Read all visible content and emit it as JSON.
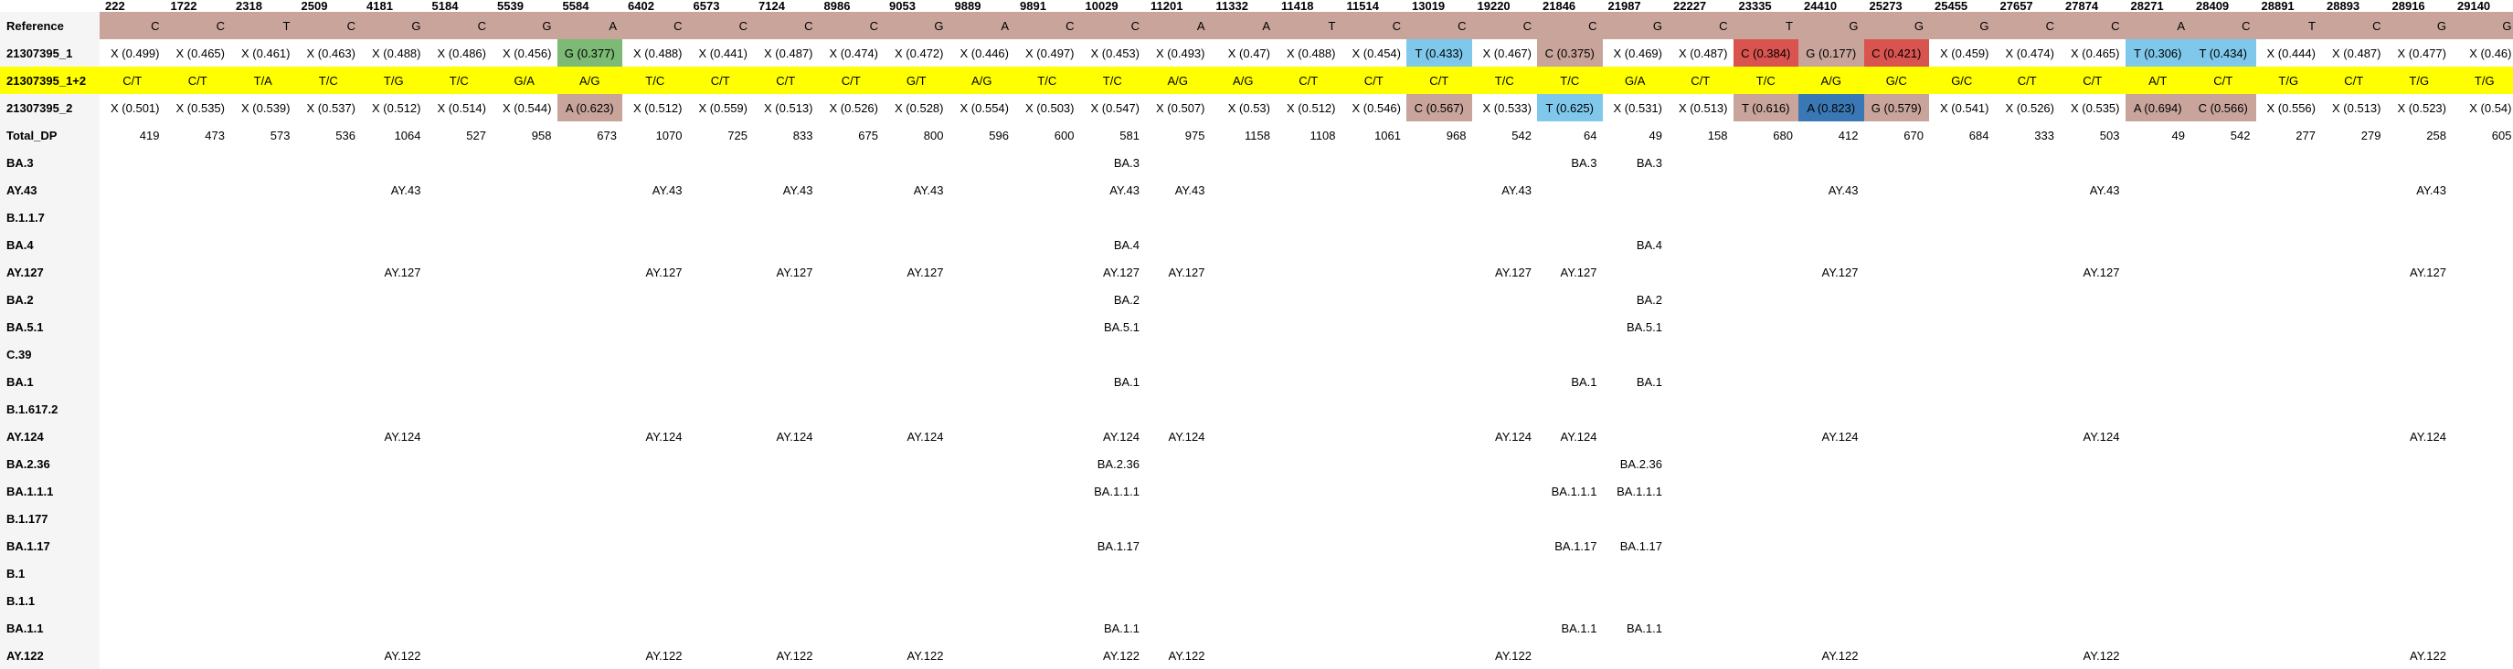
{
  "positions": [
    "222",
    "1722",
    "2318",
    "2509",
    "4181",
    "5184",
    "5539",
    "5584",
    "6402",
    "6573",
    "7124",
    "8986",
    "9053",
    "9889",
    "9891",
    "10029",
    "11201",
    "11332",
    "11418",
    "11514",
    "13019",
    "19220",
    "21846",
    "21987",
    "22227",
    "23335",
    "24410",
    "25273",
    "25455",
    "27657",
    "27874",
    "28271",
    "28409",
    "28891",
    "28893",
    "28916",
    "29140"
  ],
  "rows": [
    {
      "label": "Reference",
      "kind": "ref",
      "cells": [
        "C",
        "C",
        "T",
        "C",
        "G",
        "C",
        "G",
        "A",
        "C",
        "C",
        "C",
        "C",
        "G",
        "A",
        "C",
        "C",
        "A",
        "A",
        "T",
        "C",
        "C",
        "C",
        "C",
        "G",
        "C",
        "T",
        "G",
        "G",
        "G",
        "C",
        "C",
        "A",
        "C",
        "T",
        "C",
        "G",
        "G"
      ]
    },
    {
      "label": "21307395_1",
      "kind": "sample",
      "cells": [
        "X (0.499)",
        "X (0.465)",
        "X (0.461)",
        "X (0.463)",
        "X (0.488)",
        "X (0.486)",
        "X (0.456)",
        "G (0.377)",
        "X (0.488)",
        "X (0.441)",
        "X (0.487)",
        "X (0.474)",
        "X (0.472)",
        "X (0.446)",
        "X (0.497)",
        "X (0.453)",
        "X (0.493)",
        "X (0.47)",
        "X (0.488)",
        "X (0.454)",
        "T (0.433)",
        "X (0.467)",
        "C (0.375)",
        "X (0.469)",
        "X (0.487)",
        "C (0.384)",
        "G (0.177)",
        "C (0.421)",
        "X (0.459)",
        "X (0.474)",
        "X (0.465)",
        "T (0.306)",
        "T (0.434)",
        "X (0.444)",
        "X (0.487)",
        "X (0.477)",
        "X (0.46)"
      ]
    },
    {
      "label": "21307395_1+2",
      "kind": "comb",
      "cells": [
        "C/T",
        "C/T",
        "T/A",
        "T/C",
        "T/G",
        "T/C",
        "G/A",
        "A/G",
        "T/C",
        "C/T",
        "C/T",
        "C/T",
        "G/T",
        "A/G",
        "T/C",
        "T/C",
        "A/G",
        "A/G",
        "C/T",
        "C/T",
        "C/T",
        "T/C",
        "T/C",
        "G/A",
        "C/T",
        "T/C",
        "A/G",
        "G/C",
        "G/C",
        "C/T",
        "C/T",
        "A/T",
        "C/T",
        "T/G",
        "C/T",
        "T/G",
        "T/G"
      ]
    },
    {
      "label": "21307395_2",
      "kind": "sample",
      "cells": [
        "X (0.501)",
        "X (0.535)",
        "X (0.539)",
        "X (0.537)",
        "X (0.512)",
        "X (0.514)",
        "X (0.544)",
        "A (0.623)",
        "X (0.512)",
        "X (0.559)",
        "X (0.513)",
        "X (0.526)",
        "X (0.528)",
        "X (0.554)",
        "X (0.503)",
        "X (0.547)",
        "X (0.507)",
        "X (0.53)",
        "X (0.512)",
        "X (0.546)",
        "C (0.567)",
        "X (0.533)",
        "T (0.625)",
        "X (0.531)",
        "X (0.513)",
        "T (0.616)",
        "A (0.823)",
        "G (0.579)",
        "X (0.541)",
        "X (0.526)",
        "X (0.535)",
        "A (0.694)",
        "C (0.566)",
        "X (0.556)",
        "X (0.513)",
        "X (0.523)",
        "X (0.54)"
      ]
    },
    {
      "label": "Total_DP",
      "kind": "plain",
      "cells": [
        "419",
        "473",
        "573",
        "536",
        "1064",
        "527",
        "958",
        "673",
        "1070",
        "725",
        "833",
        "675",
        "800",
        "596",
        "600",
        "581",
        "975",
        "1158",
        "1108",
        "1061",
        "968",
        "542",
        "64",
        "49",
        "158",
        "680",
        "412",
        "670",
        "684",
        "333",
        "503",
        "49",
        "542",
        "277",
        "279",
        "258",
        "605"
      ]
    },
    {
      "label": "BA.3",
      "kind": "plain",
      "cells": [
        "",
        "",
        "",
        "",
        "",
        "",
        "",
        "",
        "",
        "",
        "",
        "",
        "",
        "",
        "",
        "BA.3",
        "",
        "",
        "",
        "",
        "",
        "",
        "BA.3",
        "BA.3",
        "",
        "",
        "",
        "",
        "",
        "",
        "",
        "",
        "",
        "",
        "",
        "",
        ""
      ]
    },
    {
      "label": "AY.43",
      "kind": "plain",
      "cells": [
        "",
        "",
        "",
        "",
        "AY.43",
        "",
        "",
        "",
        "AY.43",
        "",
        "AY.43",
        "",
        "AY.43",
        "",
        "",
        "AY.43",
        "AY.43",
        "",
        "",
        "",
        "",
        "AY.43",
        "",
        "",
        "",
        "",
        "AY.43",
        "",
        "",
        "",
        "AY.43",
        "",
        "",
        "",
        "",
        "AY.43",
        ""
      ]
    },
    {
      "label": "B.1.1.7",
      "kind": "plain",
      "cells": [
        "",
        "",
        "",
        "",
        "",
        "",
        "",
        "",
        "",
        "",
        "",
        "",
        "",
        "",
        "",
        "",
        "",
        "",
        "",
        "",
        "",
        "",
        "",
        "",
        "",
        "",
        "",
        "",
        "",
        "",
        "",
        "",
        "",
        "",
        "",
        "",
        ""
      ]
    },
    {
      "label": "BA.4",
      "kind": "plain",
      "cells": [
        "",
        "",
        "",
        "",
        "",
        "",
        "",
        "",
        "",
        "",
        "",
        "",
        "",
        "",
        "",
        "BA.4",
        "",
        "",
        "",
        "",
        "",
        "",
        "",
        "BA.4",
        "",
        "",
        "",
        "",
        "",
        "",
        "",
        "",
        "",
        "",
        "",
        "",
        ""
      ]
    },
    {
      "label": "AY.127",
      "kind": "plain",
      "cells": [
        "",
        "",
        "",
        "",
        "AY.127",
        "",
        "",
        "",
        "AY.127",
        "",
        "AY.127",
        "",
        "AY.127",
        "",
        "",
        "AY.127",
        "AY.127",
        "",
        "",
        "",
        "",
        "AY.127",
        "AY.127",
        "",
        "",
        "",
        "AY.127",
        "",
        "",
        "",
        "AY.127",
        "",
        "",
        "",
        "",
        "AY.127",
        ""
      ]
    },
    {
      "label": "BA.2",
      "kind": "plain",
      "cells": [
        "",
        "",
        "",
        "",
        "",
        "",
        "",
        "",
        "",
        "",
        "",
        "",
        "",
        "",
        "",
        "BA.2",
        "",
        "",
        "",
        "",
        "",
        "",
        "",
        "BA.2",
        "",
        "",
        "",
        "",
        "",
        "",
        "",
        "",
        "",
        "",
        "",
        "",
        ""
      ]
    },
    {
      "label": "BA.5.1",
      "kind": "plain",
      "cells": [
        "",
        "",
        "",
        "",
        "",
        "",
        "",
        "",
        "",
        "",
        "",
        "",
        "",
        "",
        "",
        "BA.5.1",
        "",
        "",
        "",
        "",
        "",
        "",
        "",
        "BA.5.1",
        "",
        "",
        "",
        "",
        "",
        "",
        "",
        "",
        "",
        "",
        "",
        "",
        ""
      ]
    },
    {
      "label": "C.39",
      "kind": "plain",
      "cells": [
        "",
        "",
        "",
        "",
        "",
        "",
        "",
        "",
        "",
        "",
        "",
        "",
        "",
        "",
        "",
        "",
        "",
        "",
        "",
        "",
        "",
        "",
        "",
        "",
        "",
        "",
        "",
        "",
        "",
        "",
        "",
        "",
        "",
        "",
        "",
        "",
        ""
      ]
    },
    {
      "label": "BA.1",
      "kind": "plain",
      "cells": [
        "",
        "",
        "",
        "",
        "",
        "",
        "",
        "",
        "",
        "",
        "",
        "",
        "",
        "",
        "",
        "BA.1",
        "",
        "",
        "",
        "",
        "",
        "",
        "BA.1",
        "BA.1",
        "",
        "",
        "",
        "",
        "",
        "",
        "",
        "",
        "",
        "",
        "",
        "",
        ""
      ]
    },
    {
      "label": "B.1.617.2",
      "kind": "plain",
      "cells": [
        "",
        "",
        "",
        "",
        "",
        "",
        "",
        "",
        "",
        "",
        "",
        "",
        "",
        "",
        "",
        "",
        "",
        "",
        "",
        "",
        "",
        "",
        "",
        "",
        "",
        "",
        "",
        "",
        "",
        "",
        "",
        "",
        "",
        "",
        "",
        "",
        ""
      ]
    },
    {
      "label": "AY.124",
      "kind": "plain",
      "cells": [
        "",
        "",
        "",
        "",
        "AY.124",
        "",
        "",
        "",
        "AY.124",
        "",
        "AY.124",
        "",
        "AY.124",
        "",
        "",
        "AY.124",
        "AY.124",
        "",
        "",
        "",
        "",
        "AY.124",
        "AY.124",
        "",
        "",
        "",
        "AY.124",
        "",
        "",
        "",
        "AY.124",
        "",
        "",
        "",
        "",
        "AY.124",
        ""
      ]
    },
    {
      "label": "BA.2.36",
      "kind": "plain",
      "cells": [
        "",
        "",
        "",
        "",
        "",
        "",
        "",
        "",
        "",
        "",
        "",
        "",
        "",
        "",
        "",
        "BA.2.36",
        "",
        "",
        "",
        "",
        "",
        "",
        "",
        "BA.2.36",
        "",
        "",
        "",
        "",
        "",
        "",
        "",
        "",
        "",
        "",
        "",
        "",
        ""
      ]
    },
    {
      "label": "BA.1.1.1",
      "kind": "plain",
      "cells": [
        "",
        "",
        "",
        "",
        "",
        "",
        "",
        "",
        "",
        "",
        "",
        "",
        "",
        "",
        "",
        "BA.1.1.1",
        "",
        "",
        "",
        "",
        "",
        "",
        "BA.1.1.1",
        "BA.1.1.1",
        "",
        "",
        "",
        "",
        "",
        "",
        "",
        "",
        "",
        "",
        "",
        "",
        ""
      ]
    },
    {
      "label": "B.1.177",
      "kind": "plain",
      "cells": [
        "",
        "",
        "",
        "",
        "",
        "",
        "",
        "",
        "",
        "",
        "",
        "",
        "",
        "",
        "",
        "",
        "",
        "",
        "",
        "",
        "",
        "",
        "",
        "",
        "",
        "",
        "",
        "",
        "",
        "",
        "",
        "",
        "",
        "",
        "",
        "",
        ""
      ]
    },
    {
      "label": "BA.1.17",
      "kind": "plain",
      "cells": [
        "",
        "",
        "",
        "",
        "",
        "",
        "",
        "",
        "",
        "",
        "",
        "",
        "",
        "",
        "",
        "BA.1.17",
        "",
        "",
        "",
        "",
        "",
        "",
        "BA.1.17",
        "BA.1.17",
        "",
        "",
        "",
        "",
        "",
        "",
        "",
        "",
        "",
        "",
        "",
        "",
        ""
      ]
    },
    {
      "label": "B.1",
      "kind": "plain",
      "cells": [
        "",
        "",
        "",
        "",
        "",
        "",
        "",
        "",
        "",
        "",
        "",
        "",
        "",
        "",
        "",
        "",
        "",
        "",
        "",
        "",
        "",
        "",
        "",
        "",
        "",
        "",
        "",
        "",
        "",
        "",
        "",
        "",
        "",
        "",
        "",
        "",
        ""
      ]
    },
    {
      "label": "B.1.1",
      "kind": "plain",
      "cells": [
        "",
        "",
        "",
        "",
        "",
        "",
        "",
        "",
        "",
        "",
        "",
        "",
        "",
        "",
        "",
        "",
        "",
        "",
        "",
        "",
        "",
        "",
        "",
        "",
        "",
        "",
        "",
        "",
        "",
        "",
        "",
        "",
        "",
        "",
        "",
        "",
        ""
      ]
    },
    {
      "label": "BA.1.1",
      "kind": "plain",
      "cells": [
        "",
        "",
        "",
        "",
        "",
        "",
        "",
        "",
        "",
        "",
        "",
        "",
        "",
        "",
        "",
        "BA.1.1",
        "",
        "",
        "",
        "",
        "",
        "",
        "BA.1.1",
        "BA.1.1",
        "",
        "",
        "",
        "",
        "",
        "",
        "",
        "",
        "",
        "",
        "",
        "",
        ""
      ]
    },
    {
      "label": "AY.122",
      "kind": "plain",
      "cells": [
        "",
        "",
        "",
        "",
        "AY.122",
        "",
        "",
        "",
        "AY.122",
        "",
        "AY.122",
        "",
        "AY.122",
        "",
        "",
        "AY.122",
        "AY.122",
        "",
        "",
        "",
        "",
        "AY.122",
        "",
        "",
        "",
        "",
        "AY.122",
        "",
        "",
        "",
        "AY.122",
        "",
        "",
        "",
        "",
        "AY.122",
        ""
      ]
    }
  ],
  "highlights": {
    "21307395_1": {
      "7": "green",
      "20": "cyan",
      "22": "pink",
      "25": "red",
      "26": "pink",
      "27": "red",
      "31": "cyan",
      "32": "cyan"
    },
    "21307395_2": {
      "7": "pink",
      "20": "pink",
      "22": "cyan",
      "25": "pink",
      "26": "blue",
      "27": "pink",
      "31": "pink",
      "32": "pink"
    }
  },
  "colors": {
    "reference": "#c8a49b",
    "combined": "#ffff00",
    "green": "#7cba76",
    "pink": "#c8a49b",
    "cyan": "#7fc8ec",
    "red": "#d9534f",
    "blue": "#3a78b5"
  }
}
